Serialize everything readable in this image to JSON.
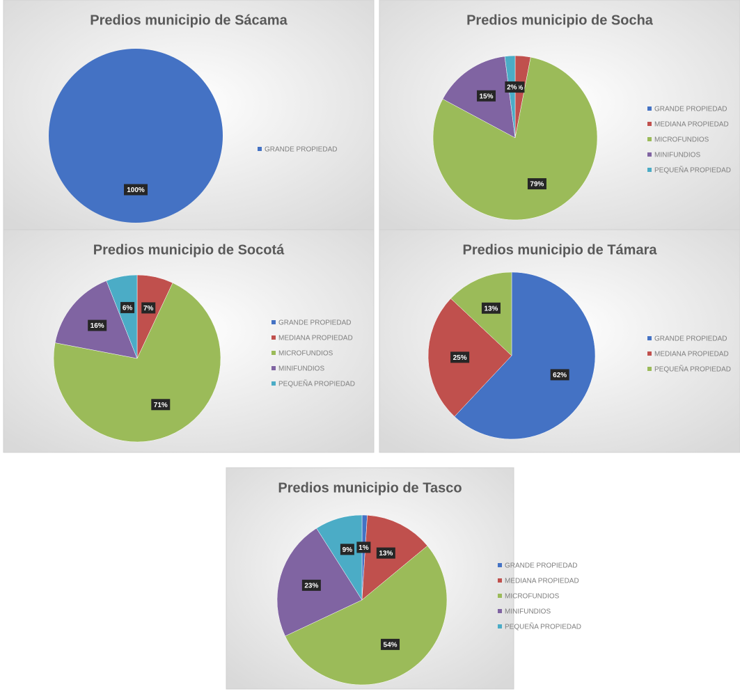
{
  "chart_data": [
    {
      "type": "pie",
      "title": "Predios municipio de Sácama",
      "categories": [
        "GRANDE PROPIEDAD"
      ],
      "values": [
        100
      ],
      "value_labels": [
        "100%"
      ],
      "colors": [
        "#4472c4"
      ]
    },
    {
      "type": "pie",
      "title": "Predios municipio de Socha",
      "categories": [
        "GRANDE PROPIEDAD",
        "MEDIANA PROPIEDAD",
        "MICROFUNDIOS",
        "MINIFUNDIOS",
        "PEQUEÑA PROPIEDAD"
      ],
      "values": [
        0,
        3,
        79,
        15,
        2
      ],
      "value_labels": [
        null,
        "%",
        "79%",
        "15%",
        "2%"
      ],
      "colors": [
        "#4472c4",
        "#c0504d",
        "#9bbb59",
        "#8064a2",
        "#4bacc6"
      ]
    },
    {
      "type": "pie",
      "title": "Predios municipio de Socotá",
      "categories": [
        "GRANDE PROPIEDAD",
        "MEDIANA PROPIEDAD",
        "MICROFUNDIOS",
        "MINIFUNDIOS",
        "PEQUEÑA PROPIEDAD"
      ],
      "values": [
        0,
        7,
        71,
        16,
        6
      ],
      "value_labels": [
        null,
        "7%",
        "71%",
        "16%",
        "6%"
      ],
      "colors": [
        "#4472c4",
        "#c0504d",
        "#9bbb59",
        "#8064a2",
        "#4bacc6"
      ]
    },
    {
      "type": "pie",
      "title": "Predios municipio de Támara",
      "categories": [
        "GRANDE PROPIEDAD",
        "MEDIANA PROPIEDAD",
        "PEQUEÑA PROPIEDAD"
      ],
      "values": [
        62,
        25,
        13
      ],
      "value_labels": [
        "62%",
        "25%",
        "13%"
      ],
      "colors": [
        "#4472c4",
        "#c0504d",
        "#9bbb59"
      ]
    },
    {
      "type": "pie",
      "title": "Predios municipio de Tasco",
      "categories": [
        "GRANDE PROPIEDAD",
        "MEDIANA PROPIEDAD",
        "MICROFUNDIOS",
        "MINIFUNDIOS",
        "PEQUEÑA PROPIEDAD"
      ],
      "values": [
        1,
        13,
        54,
        23,
        9
      ],
      "value_labels": [
        "1%",
        "13%",
        "54%",
        "23%",
        "9%"
      ],
      "colors": [
        "#4472c4",
        "#c0504d",
        "#9bbb59",
        "#8064a2",
        "#4bacc6"
      ]
    }
  ]
}
